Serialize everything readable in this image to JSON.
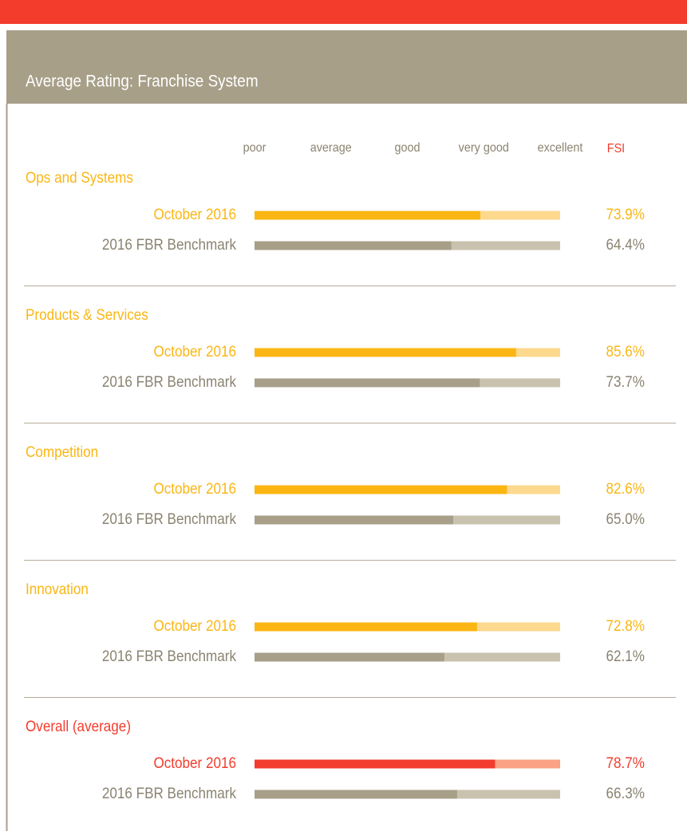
{
  "chart_data": {
    "type": "bar",
    "title": "Average Rating: Franchise System",
    "xlim": [
      0,
      100
    ],
    "xticks": [
      {
        "value": 0,
        "label": "poor"
      },
      {
        "value": 25,
        "label": "average"
      },
      {
        "value": 50,
        "label": "good"
      },
      {
        "value": 75,
        "label": "very good"
      },
      {
        "value": 100,
        "label": "excellent"
      }
    ],
    "value_header": "FSI",
    "categories": [
      "Ops and Systems",
      "Products & Services",
      "Competition",
      "Innovation",
      "Overall (average)"
    ],
    "series": [
      {
        "name": "October 2016",
        "colors": [
          "#fbb614",
          "#fbb614",
          "#fbb614",
          "#fbb614",
          "#f33c2c"
        ],
        "track_colors": [
          "#fdd98e",
          "#fdd98e",
          "#fdd98e",
          "#fdd98e",
          "#fba184"
        ],
        "values": [
          73.9,
          85.6,
          82.6,
          72.8,
          78.7
        ],
        "value_labels": [
          "73.9%",
          "85.6%",
          "82.6%",
          "72.8%",
          "78.7%"
        ]
      },
      {
        "name": "2016 FBR Benchmark",
        "colors": [
          "#a79f88",
          "#a79f88",
          "#a79f88",
          "#a79f88",
          "#a79f88"
        ],
        "track_colors": [
          "#c9c2ae",
          "#c9c2ae",
          "#c9c2ae",
          "#c9c2ae",
          "#c9c2ae"
        ],
        "values": [
          64.4,
          73.7,
          65.0,
          62.1,
          66.3
        ],
        "value_labels": [
          "64.4%",
          "73.7%",
          "65.0%",
          "62.1%",
          "66.3%"
        ]
      }
    ]
  }
}
